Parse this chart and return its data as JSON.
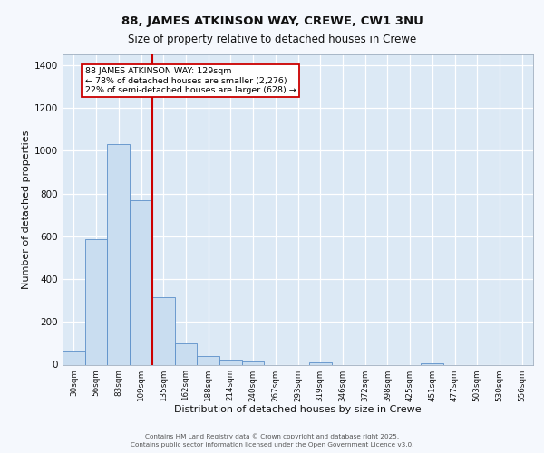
{
  "title_line1": "88, JAMES ATKINSON WAY, CREWE, CW1 3NU",
  "title_line2": "Size of property relative to detached houses in Crewe",
  "xlabel": "Distribution of detached houses by size in Crewe",
  "ylabel": "Number of detached properties",
  "bar_labels": [
    "30sqm",
    "56sqm",
    "83sqm",
    "109sqm",
    "135sqm",
    "162sqm",
    "188sqm",
    "214sqm",
    "240sqm",
    "267sqm",
    "293sqm",
    "319sqm",
    "346sqm",
    "372sqm",
    "398sqm",
    "425sqm",
    "451sqm",
    "477sqm",
    "503sqm",
    "530sqm",
    "556sqm"
  ],
  "bar_values": [
    65,
    585,
    1030,
    770,
    315,
    100,
    42,
    25,
    13,
    0,
    0,
    10,
    0,
    0,
    0,
    0,
    7,
    0,
    0,
    0,
    0
  ],
  "bar_color": "#c9ddf0",
  "bar_edge_color": "#5b8fc9",
  "vline_color": "#cc0000",
  "annotation_text": "88 JAMES ATKINSON WAY: 129sqm\n← 78% of detached houses are smaller (2,276)\n22% of semi-detached houses are larger (628) →",
  "annotation_box_facecolor": "#ffffff",
  "annotation_box_edgecolor": "#cc0000",
  "ylim": [
    0,
    1450
  ],
  "yticks": [
    0,
    200,
    400,
    600,
    800,
    1000,
    1200,
    1400
  ],
  "plot_bg": "#dce9f5",
  "fig_bg": "#f5f8fd",
  "grid_color": "#ffffff",
  "footer_line1": "Contains HM Land Registry data © Crown copyright and database right 2025.",
  "footer_line2": "Contains public sector information licensed under the Open Government Licence v3.0."
}
